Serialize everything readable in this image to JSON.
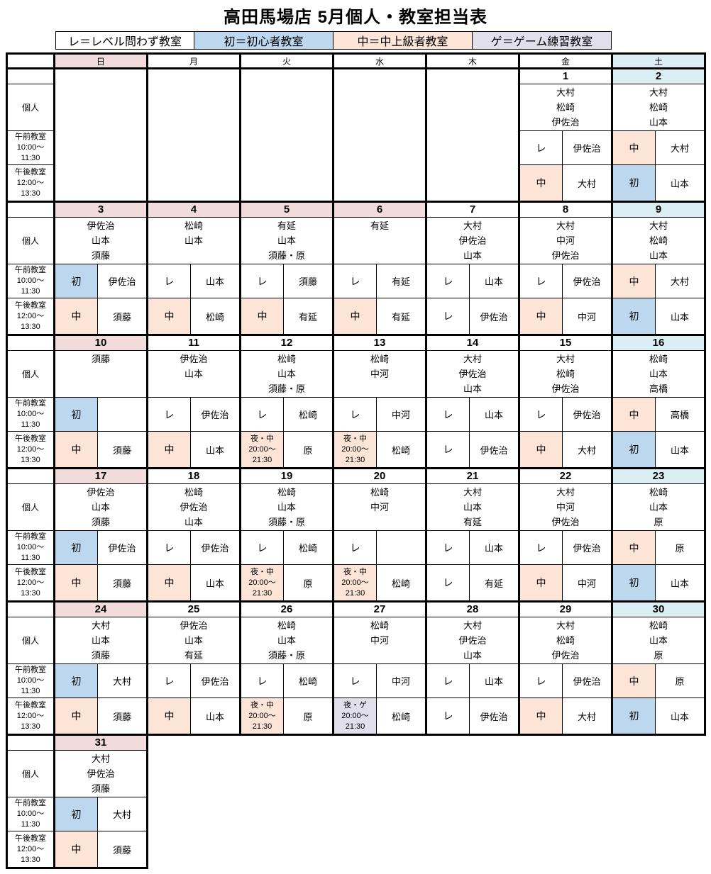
{
  "title": "高田馬場店 5月個人・教室担当表",
  "colors": {
    "white": "#ffffff",
    "pink": "#f2dcdb",
    "blue": "#bdd7ee",
    "peach": "#fce4d6",
    "lavender": "#e2dfec",
    "cyan": "#daeef3"
  },
  "legend": [
    {
      "label": "レ＝レベル問わず教室",
      "bg": "white"
    },
    {
      "label": "初＝初心者教室",
      "bg": "blue"
    },
    {
      "label": "中＝中上級者教室",
      "bg": "peach"
    },
    {
      "label": "ゲ＝ゲーム練習教室",
      "bg": "lavender"
    }
  ],
  "day_headers": [
    {
      "key": "sun",
      "label": "日",
      "bg": "pink"
    },
    {
      "key": "mon",
      "label": "月",
      "bg": "white"
    },
    {
      "key": "tue",
      "label": "火",
      "bg": "white"
    },
    {
      "key": "wed",
      "label": "水",
      "bg": "white"
    },
    {
      "key": "thu",
      "label": "木",
      "bg": "white"
    },
    {
      "key": "fri",
      "label": "金",
      "bg": "white"
    },
    {
      "key": "sat",
      "label": "土",
      "bg": "cyan"
    }
  ],
  "row_labels": {
    "personal": "個人",
    "morning": "午前教室\n10:00～\n11:30",
    "afternoon": "午後教室\n12:00～\n13:30"
  },
  "weeks": [
    {
      "days": [
        {
          "state": "empty"
        },
        {
          "state": "empty"
        },
        {
          "state": "empty"
        },
        {
          "state": "empty"
        },
        {
          "state": "empty"
        },
        {
          "state": "normal",
          "date": "1",
          "date_bg": "white",
          "personal": [
            "大村",
            "松崎",
            "伊佐治"
          ],
          "morning": {
            "tag": "レ",
            "bg": "white",
            "name": "伊佐治"
          },
          "afternoon": {
            "tag": "中",
            "bg": "peach",
            "name": "大村"
          }
        },
        {
          "state": "normal",
          "date": "2",
          "date_bg": "cyan",
          "personal": [
            "大村",
            "松崎",
            "山本"
          ],
          "morning": {
            "tag": "中",
            "bg": "peach",
            "name": "大村"
          },
          "afternoon": {
            "tag": "初",
            "bg": "blue",
            "name": "山本"
          }
        }
      ]
    },
    {
      "days": [
        {
          "state": "normal",
          "date": "3",
          "date_bg": "pink",
          "personal": [
            "伊佐治",
            "山本",
            "須藤"
          ],
          "morning": {
            "tag": "初",
            "bg": "blue",
            "name": "伊佐治"
          },
          "afternoon": {
            "tag": "中",
            "bg": "peach",
            "name": "須藤"
          }
        },
        {
          "state": "normal",
          "date": "4",
          "date_bg": "pink",
          "personal": [
            "松崎",
            "山本"
          ],
          "morning": {
            "tag": "レ",
            "bg": "white",
            "name": "山本"
          },
          "afternoon": {
            "tag": "中",
            "bg": "peach",
            "name": "松崎"
          }
        },
        {
          "state": "normal",
          "date": "5",
          "date_bg": "pink",
          "personal": [
            "有延",
            "山本",
            "須藤・原"
          ],
          "morning": {
            "tag": "レ",
            "bg": "white",
            "name": "須藤"
          },
          "afternoon": {
            "tag": "中",
            "bg": "peach",
            "name": "有延"
          }
        },
        {
          "state": "normal",
          "date": "6",
          "date_bg": "pink",
          "personal": [
            "有延"
          ],
          "morning": {
            "tag": "レ",
            "bg": "white",
            "name": "有延"
          },
          "afternoon": {
            "tag": "中",
            "bg": "peach",
            "name": "有延"
          }
        },
        {
          "state": "normal",
          "date": "7",
          "date_bg": "white",
          "personal": [
            "大村",
            "伊佐治",
            "山本"
          ],
          "morning": {
            "tag": "レ",
            "bg": "white",
            "name": "山本"
          },
          "afternoon": {
            "tag": "レ",
            "bg": "white",
            "name": "伊佐治"
          }
        },
        {
          "state": "normal",
          "date": "8",
          "date_bg": "white",
          "personal": [
            "大村",
            "中河",
            "伊佐治"
          ],
          "morning": {
            "tag": "レ",
            "bg": "white",
            "name": "伊佐治"
          },
          "afternoon": {
            "tag": "中",
            "bg": "peach",
            "name": "中河"
          }
        },
        {
          "state": "normal",
          "date": "9",
          "date_bg": "cyan",
          "personal": [
            "大村",
            "松崎",
            "山本"
          ],
          "morning": {
            "tag": "中",
            "bg": "peach",
            "name": "大村"
          },
          "afternoon": {
            "tag": "初",
            "bg": "blue",
            "name": "山本"
          }
        }
      ]
    },
    {
      "days": [
        {
          "state": "normal",
          "date": "10",
          "date_bg": "pink",
          "personal": [
            "須藤"
          ],
          "morning": {
            "tag": "初",
            "bg": "blue",
            "name": ""
          },
          "afternoon": {
            "tag": "中",
            "bg": "peach",
            "name": "須藤"
          }
        },
        {
          "state": "normal",
          "date": "11",
          "date_bg": "white",
          "personal": [
            "伊佐治",
            "山本"
          ],
          "morning": {
            "tag": "レ",
            "bg": "white",
            "name": "伊佐治"
          },
          "afternoon": {
            "tag": "中",
            "bg": "peach",
            "name": "山本"
          }
        },
        {
          "state": "normal",
          "date": "12",
          "date_bg": "white",
          "personal": [
            "松崎",
            "山本",
            "須藤・原"
          ],
          "morning": {
            "tag": "レ",
            "bg": "white",
            "name": "松崎"
          },
          "afternoon": {
            "tag": "夜・中\n20:00～\n21:30",
            "bg": "peach",
            "name": "原",
            "night": true
          }
        },
        {
          "state": "normal",
          "date": "13",
          "date_bg": "white",
          "personal": [
            "松崎",
            "中河"
          ],
          "morning": {
            "tag": "レ",
            "bg": "white",
            "name": "中河"
          },
          "afternoon": {
            "tag": "夜・中\n20:00～\n21:30",
            "bg": "peach",
            "name": "松崎",
            "night": true
          }
        },
        {
          "state": "normal",
          "date": "14",
          "date_bg": "white",
          "personal": [
            "大村",
            "伊佐治",
            "山本"
          ],
          "morning": {
            "tag": "レ",
            "bg": "white",
            "name": "山本"
          },
          "afternoon": {
            "tag": "レ",
            "bg": "white",
            "name": "伊佐治"
          }
        },
        {
          "state": "normal",
          "date": "15",
          "date_bg": "white",
          "personal": [
            "大村",
            "松崎",
            "伊佐治"
          ],
          "morning": {
            "tag": "レ",
            "bg": "white",
            "name": "伊佐治"
          },
          "afternoon": {
            "tag": "中",
            "bg": "peach",
            "name": "大村"
          }
        },
        {
          "state": "normal",
          "date": "16",
          "date_bg": "cyan",
          "personal": [
            "松崎",
            "山本",
            "高橋"
          ],
          "morning": {
            "tag": "中",
            "bg": "peach",
            "name": "高橋"
          },
          "afternoon": {
            "tag": "初",
            "bg": "blue",
            "name": "山本"
          }
        }
      ]
    },
    {
      "days": [
        {
          "state": "normal",
          "date": "17",
          "date_bg": "pink",
          "personal": [
            "伊佐治",
            "山本",
            "須藤"
          ],
          "morning": {
            "tag": "初",
            "bg": "blue",
            "name": "伊佐治"
          },
          "afternoon": {
            "tag": "中",
            "bg": "peach",
            "name": "須藤"
          }
        },
        {
          "state": "normal",
          "date": "18",
          "date_bg": "white",
          "personal": [
            "松崎",
            "伊佐治",
            "山本"
          ],
          "morning": {
            "tag": "レ",
            "bg": "white",
            "name": "伊佐治"
          },
          "afternoon": {
            "tag": "中",
            "bg": "peach",
            "name": "山本"
          }
        },
        {
          "state": "normal",
          "date": "19",
          "date_bg": "white",
          "personal": [
            "松崎",
            "山本",
            "須藤・原"
          ],
          "morning": {
            "tag": "レ",
            "bg": "white",
            "name": "松崎"
          },
          "afternoon": {
            "tag": "夜・中\n20:00～\n21:30",
            "bg": "peach",
            "name": "原",
            "night": true
          }
        },
        {
          "state": "normal",
          "date": "20",
          "date_bg": "white",
          "personal": [
            "松崎",
            "中河"
          ],
          "morning": {
            "tag": "レ",
            "bg": "white",
            "name": ""
          },
          "afternoon": {
            "tag": "夜・中\n20:00～\n21:30",
            "bg": "peach",
            "name": "松崎",
            "night": true
          }
        },
        {
          "state": "normal",
          "date": "21",
          "date_bg": "white",
          "personal": [
            "大村",
            "山本",
            "有延"
          ],
          "morning": {
            "tag": "レ",
            "bg": "white",
            "name": "山本"
          },
          "afternoon": {
            "tag": "レ",
            "bg": "white",
            "name": "有延"
          }
        },
        {
          "state": "normal",
          "date": "22",
          "date_bg": "white",
          "personal": [
            "大村",
            "中河",
            "伊佐治"
          ],
          "morning": {
            "tag": "レ",
            "bg": "white",
            "name": "伊佐治"
          },
          "afternoon": {
            "tag": "中",
            "bg": "peach",
            "name": "中河"
          }
        },
        {
          "state": "normal",
          "date": "23",
          "date_bg": "cyan",
          "personal": [
            "松崎",
            "山本",
            "原"
          ],
          "morning": {
            "tag": "中",
            "bg": "peach",
            "name": "原"
          },
          "afternoon": {
            "tag": "初",
            "bg": "blue",
            "name": "山本"
          }
        }
      ]
    },
    {
      "days": [
        {
          "state": "normal",
          "date": "24",
          "date_bg": "pink",
          "personal": [
            "大村",
            "山本",
            "須藤"
          ],
          "morning": {
            "tag": "初",
            "bg": "blue",
            "name": "大村"
          },
          "afternoon": {
            "tag": "中",
            "bg": "peach",
            "name": "須藤"
          }
        },
        {
          "state": "normal",
          "date": "25",
          "date_bg": "white",
          "personal": [
            "伊佐治",
            "山本",
            "有延"
          ],
          "morning": {
            "tag": "レ",
            "bg": "white",
            "name": "伊佐治"
          },
          "afternoon": {
            "tag": "中",
            "bg": "peach",
            "name": "山本"
          }
        },
        {
          "state": "normal",
          "date": "26",
          "date_bg": "white",
          "personal": [
            "松崎",
            "山本",
            "須藤・原"
          ],
          "morning": {
            "tag": "レ",
            "bg": "white",
            "name": "松崎"
          },
          "afternoon": {
            "tag": "夜・中\n20:00～\n21:30",
            "bg": "peach",
            "name": "原",
            "night": true
          }
        },
        {
          "state": "normal",
          "date": "27",
          "date_bg": "white",
          "personal": [
            "松崎",
            "中河"
          ],
          "morning": {
            "tag": "レ",
            "bg": "white",
            "name": "中河"
          },
          "afternoon": {
            "tag": "夜・ゲ\n20:00～\n21:30",
            "bg": "lavender",
            "name": "松崎",
            "night": true
          }
        },
        {
          "state": "normal",
          "date": "28",
          "date_bg": "white",
          "personal": [
            "大村",
            "伊佐治",
            "山本"
          ],
          "morning": {
            "tag": "レ",
            "bg": "white",
            "name": "山本"
          },
          "afternoon": {
            "tag": "レ",
            "bg": "white",
            "name": "伊佐治"
          }
        },
        {
          "state": "normal",
          "date": "29",
          "date_bg": "white",
          "personal": [
            "大村",
            "松崎",
            "伊佐治"
          ],
          "morning": {
            "tag": "レ",
            "bg": "white",
            "name": "伊佐治"
          },
          "afternoon": {
            "tag": "中",
            "bg": "peach",
            "name": "大村"
          }
        },
        {
          "state": "normal",
          "date": "30",
          "date_bg": "cyan",
          "personal": [
            "松崎",
            "山本",
            "原"
          ],
          "morning": {
            "tag": "中",
            "bg": "peach",
            "name": "原"
          },
          "afternoon": {
            "tag": "初",
            "bg": "blue",
            "name": "山本"
          }
        }
      ]
    },
    {
      "days": [
        {
          "state": "normal",
          "date": "31",
          "date_bg": "pink",
          "personal": [
            "大村",
            "伊佐治",
            "須藤"
          ],
          "morning": {
            "tag": "初",
            "bg": "blue",
            "name": "大村"
          },
          "afternoon": {
            "tag": "中",
            "bg": "peach",
            "name": "須藤"
          }
        },
        {
          "state": "absent"
        },
        {
          "state": "absent"
        },
        {
          "state": "absent"
        },
        {
          "state": "absent"
        },
        {
          "state": "absent"
        },
        {
          "state": "absent"
        }
      ]
    }
  ]
}
